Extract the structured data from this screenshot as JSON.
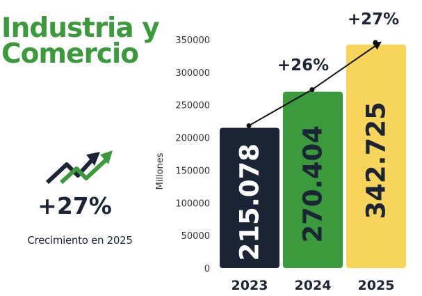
{
  "title": {
    "line1": "Industria y",
    "line2": "Comercio"
  },
  "kpi": {
    "value": "+27%",
    "caption": "Crecimiento en 2025"
  },
  "icons": {
    "growth": "trending-up-arrows-icon"
  },
  "colors": {
    "title": "#3a9a3c",
    "bar_2023": "#1c2535",
    "bar_2024": "#3a9a3c",
    "bar_2025": "#f7d55a",
    "label_on_dark": "#ffffff",
    "label_on_light": "#1c2535",
    "arrow": "#111111"
  },
  "chart_data": {
    "type": "bar",
    "categories": [
      "2023",
      "2024",
      "2025"
    ],
    "values": [
      215078,
      270404,
      342725
    ],
    "value_labels": [
      "215.078",
      "270.404",
      "342.725"
    ],
    "growth_labels": [
      "+26%",
      "+27%"
    ],
    "ylabel": "Millones",
    "ylim": [
      0,
      350000
    ],
    "yticks": [
      0,
      50000,
      100000,
      150000,
      200000,
      250000,
      300000,
      350000
    ],
    "grid": false,
    "legend": "none"
  }
}
